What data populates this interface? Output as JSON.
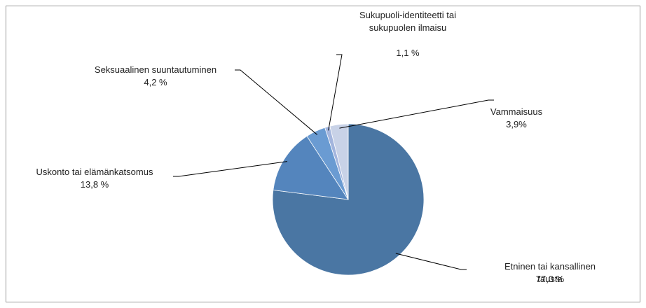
{
  "chart_data": {
    "type": "pie",
    "categories": [
      "Etninen tai kansallinen tausta",
      "Uskonto tai elämänkatsomus",
      "Seksuaalinen suuntautuminen",
      "Sukupuoli-identiteetti tai sukupuolen ilmaisu",
      "Vammaisuus"
    ],
    "values": [
      77.0,
      13.8,
      4.2,
      1.1,
      3.9
    ],
    "value_labels": [
      "77,0 %",
      "13,8 %",
      "4,2 %",
      "1,1 %",
      "3,9%"
    ],
    "colors": [
      "#4a76a3",
      "#5485bd",
      "#6a9bd2",
      "#a3b5dd",
      "#c8d2e7"
    ]
  }
}
